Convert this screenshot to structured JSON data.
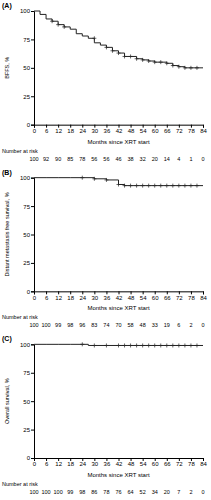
{
  "chart_data": [
    {
      "type": "line",
      "title": "(A)",
      "xlabel": "Months since XRT start",
      "ylabel": "BFFS, %",
      "xlim": [
        0,
        84
      ],
      "xticks": [
        0,
        6,
        12,
        18,
        24,
        30,
        36,
        42,
        48,
        54,
        60,
        66,
        72,
        78,
        84
      ],
      "ylim": [
        0,
        100
      ],
      "yticks": [
        0,
        25,
        50,
        75,
        100
      ],
      "series": [
        {
          "type": "step",
          "color": "#222222",
          "x": [
            0,
            3,
            6,
            9,
            12,
            15,
            18,
            21,
            24,
            27,
            30,
            33,
            36,
            39,
            42,
            45,
            48,
            51,
            54,
            57,
            60,
            63,
            66,
            69,
            72,
            75,
            78,
            81,
            84
          ],
          "values": [
            100,
            97,
            93,
            91,
            88,
            86,
            84,
            80,
            78,
            76,
            72,
            70,
            68,
            65,
            63,
            60,
            60,
            58,
            57,
            56,
            55,
            55,
            54,
            52,
            51,
            50,
            50,
            50,
            50
          ]
        },
        {
          "type": "scatter",
          "marker": "plus",
          "color": "#222222",
          "x": [
            9,
            12,
            15,
            30,
            36,
            39,
            42,
            45,
            48,
            51,
            54,
            57,
            60,
            63,
            66,
            69,
            72,
            75,
            78,
            81
          ],
          "values": [
            91,
            88,
            86,
            76,
            68,
            65,
            63,
            60,
            60,
            58,
            57,
            56,
            55,
            55,
            54,
            52,
            51,
            50,
            50,
            50
          ]
        }
      ],
      "at_risk": {
        "label": "Number at risk",
        "x": [
          0,
          6,
          12,
          18,
          24,
          30,
          36,
          42,
          48,
          54,
          60,
          66,
          72,
          78,
          84
        ],
        "values": [
          100,
          92,
          90,
          85,
          78,
          56,
          56,
          46,
          38,
          32,
          20,
          14,
          4,
          1,
          0
        ]
      }
    },
    {
      "type": "line",
      "title": "(B)",
      "xlabel": "Months since XRT start",
      "ylabel": "Distant metastasis free survival, %",
      "xlim": [
        0,
        84
      ],
      "xticks": [
        0,
        6,
        12,
        18,
        24,
        30,
        36,
        42,
        48,
        54,
        60,
        66,
        72,
        78,
        84
      ],
      "ylim": [
        0,
        100
      ],
      "yticks": [
        0,
        25,
        50,
        75,
        100
      ],
      "series": [
        {
          "type": "step",
          "color": "#222222",
          "x": [
            0,
            6,
            12,
            18,
            24,
            30,
            36,
            42,
            45,
            48,
            51,
            54,
            57,
            60,
            63,
            66,
            69,
            72,
            75,
            78,
            81,
            84
          ],
          "values": [
            100,
            100,
            100,
            100,
            100,
            99,
            98,
            94,
            93,
            93,
            93,
            93,
            93,
            93,
            93,
            93,
            93,
            93,
            93,
            93,
            93,
            93
          ]
        },
        {
          "type": "scatter",
          "marker": "plus",
          "color": "#222222",
          "x": [
            24,
            30,
            36,
            42,
            45,
            48,
            51,
            54,
            57,
            60,
            63,
            66,
            69,
            72,
            75,
            78,
            81
          ],
          "values": [
            100,
            99,
            98,
            94,
            93,
            93,
            93,
            93,
            93,
            93,
            93,
            93,
            93,
            93,
            93,
            93,
            93
          ]
        }
      ],
      "at_risk": {
        "label": "Number at risk",
        "x": [
          0,
          6,
          12,
          18,
          24,
          30,
          36,
          42,
          48,
          54,
          60,
          66,
          72,
          78,
          84
        ],
        "values": [
          100,
          100,
          99,
          98,
          96,
          83,
          74,
          70,
          58,
          48,
          33,
          19,
          6,
          2,
          0
        ]
      }
    },
    {
      "type": "line",
      "title": "(C)",
      "xlabel": "Months since XRT start",
      "ylabel": "Overall survival, %",
      "xlim": [
        0,
        84
      ],
      "xticks": [
        0,
        6,
        12,
        18,
        24,
        30,
        36,
        42,
        48,
        54,
        60,
        66,
        72,
        78,
        84
      ],
      "ylim": [
        0,
        100
      ],
      "yticks": [
        0,
        25,
        50,
        75,
        100
      ],
      "series": [
        {
          "type": "step",
          "color": "#222222",
          "x": [
            0,
            6,
            12,
            18,
            24,
            27,
            30,
            36,
            42,
            45,
            48,
            51,
            54,
            57,
            60,
            63,
            66,
            69,
            72,
            75,
            78,
            81,
            84
          ],
          "values": [
            100,
            100,
            100,
            100,
            100,
            99,
            99,
            99,
            99,
            99,
            99,
            99,
            99,
            99,
            99,
            99,
            99,
            99,
            99,
            99,
            99,
            99,
            99
          ]
        },
        {
          "type": "scatter",
          "marker": "plus",
          "color": "#222222",
          "x": [
            24,
            30,
            36,
            42,
            45,
            48,
            51,
            54,
            57,
            60,
            63,
            66,
            69,
            72,
            75,
            78,
            81
          ],
          "values": [
            100,
            99,
            99,
            99,
            99,
            99,
            99,
            99,
            99,
            99,
            99,
            99,
            99,
            99,
            99,
            99,
            99
          ]
        }
      ],
      "at_risk": {
        "label": "Number at risk",
        "x": [
          0,
          6,
          12,
          18,
          24,
          30,
          36,
          42,
          48,
          54,
          60,
          66,
          72,
          78,
          84
        ],
        "values": [
          100,
          100,
          100,
          99,
          98,
          86,
          78,
          76,
          64,
          52,
          34,
          20,
          7,
          2,
          0
        ]
      }
    }
  ]
}
